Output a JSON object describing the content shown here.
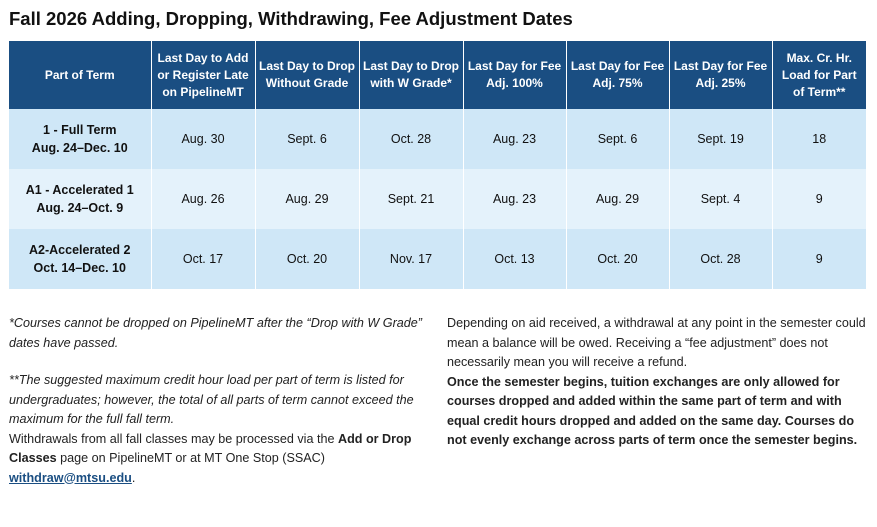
{
  "title": "Fall 2026 Adding, Dropping, Withdrawing, Fee Adjustment Dates",
  "table": {
    "headers": [
      "Part of Term",
      "Last Day to Add or Register Late on PipelineMT",
      "Last Day to Drop Without Grade",
      "Last Day to Drop with W Grade*",
      "Last Day for Fee Adj. 100%",
      "Last Day for Fee Adj. 75%",
      "Last Day for Fee Adj. 25%",
      "Max. Cr. Hr. Load for Part of Term**"
    ],
    "rows": [
      {
        "term_name": "1 - Full Term",
        "term_dates": "Aug. 24–Dec. 10",
        "cells": [
          "Aug. 30",
          "Sept. 6",
          "Oct. 28",
          "Aug. 23",
          "Sept. 6",
          "Sept. 19",
          "18"
        ]
      },
      {
        "term_name": "A1 - Accelerated 1",
        "term_dates": "Aug. 24–Oct. 9",
        "cells": [
          "Aug. 26",
          "Aug. 29",
          "Sept. 21",
          "Aug. 23",
          "Aug. 29",
          "Sept. 4",
          "9"
        ]
      },
      {
        "term_name": "A2-Accelerated 2",
        "term_dates": "Oct. 14–Dec. 10",
        "cells": [
          "Oct. 17",
          "Oct. 20",
          "Nov. 17",
          "Oct. 13",
          "Oct. 20",
          "Oct. 28",
          "9"
        ]
      }
    ]
  },
  "notes": {
    "footnote1": "*Courses cannot be dropped on PipelineMT after the “Drop with W Grade” dates have passed.",
    "footnote2": "**The suggested maximum credit hour load per part of term is listed for undergraduates; however, the total of all parts of term cannot exceed the maximum for the full fall term.",
    "withdrawal_prefix": "Withdrawals from all fall classes may be processed via the ",
    "withdrawal_bold": "Add or Drop Classes",
    "withdrawal_suffix": " page on PipelineMT or at MT One Stop (SSAC) ",
    "withdrawal_email": "withdraw@mtsu.edu",
    "withdrawal_end": "."
  },
  "right": {
    "aid_text": "Depending on aid received, a withdrawal at any point in the semester could mean a balance will be owed. Receiving a “fee adjustment” does not necessarily mean you will receive a refund.",
    "exchange_text": "Once the semester begins, tuition exchanges are only allowed for courses dropped and added within the same part of term and with equal credit hours dropped and added on the same day. Courses do not evenly exchange across parts of term once the semester begins."
  },
  "colors": {
    "header_bg": "#1a4e82",
    "row_dark": "#cfe7f7",
    "row_light": "#e4f2fb",
    "link": "#1a4e82"
  }
}
